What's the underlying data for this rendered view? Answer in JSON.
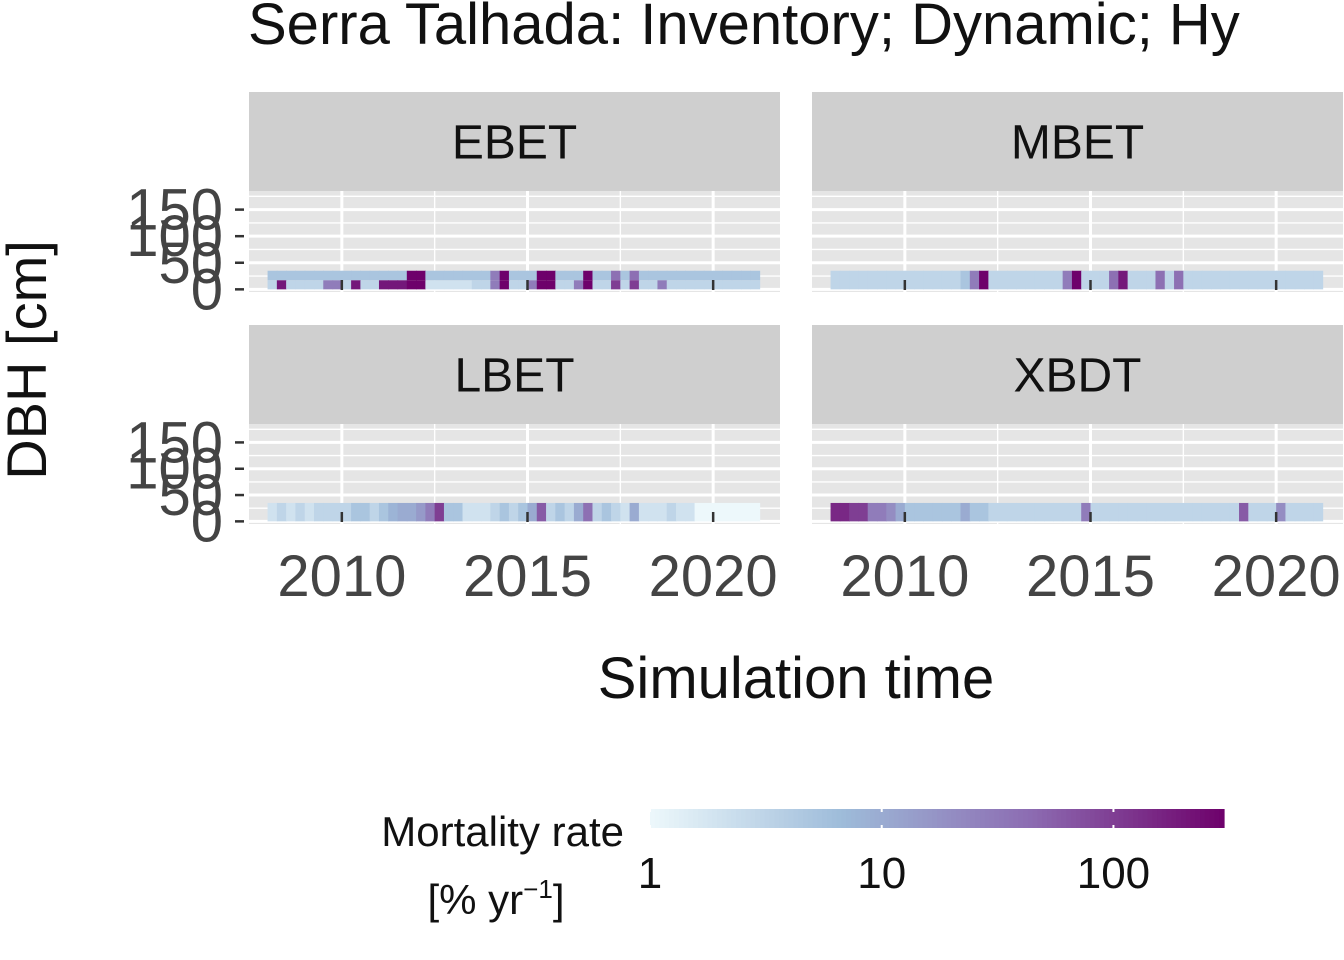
{
  "chart_data": {
    "type": "heatmap",
    "title": "Serra Talhada: Inventory; Dynamic; Hy",
    "xlabel": "Simulation time",
    "ylabel": "DBH [cm]",
    "x_ticks": [
      2010,
      2015,
      2020
    ],
    "y_ticks": [
      "150",
      "100",
      "50",
      "0"
    ],
    "xlim": [
      2007.5,
      2021.8
    ],
    "ylim": [
      -5,
      185
    ],
    "grid": true,
    "facet_rows": 2,
    "facet_cols": 2,
    "bin_width_years": 0.25,
    "bin_start_year": 2008.0,
    "bin_count": 53,
    "panels": [
      {
        "name": "EBET",
        "rows": [
          {
            "dbh": [
              17,
              35
            ],
            "values": [
              5,
              5,
              5,
              5,
              5,
              5,
              5,
              5,
              5,
              5,
              5,
              5,
              5,
              5,
              5,
              300,
              300,
              5,
              5,
              5,
              5,
              5,
              5,
              5,
              30,
              300,
              5,
              5,
              5,
              300,
              300,
              5,
              5,
              5,
              300,
              5,
              5,
              40,
              5,
              40,
              5,
              5,
              5,
              5,
              5,
              5,
              5,
              5,
              5,
              5,
              5,
              5,
              5
            ]
          },
          {
            "dbh": [
              0,
              17
            ],
            "values": [
              3,
              200,
              3,
              3,
              3,
              3,
              30,
              30,
              3,
              200,
              3,
              3,
              200,
              200,
              200,
              300,
              300,
              2,
              2,
              2,
              2,
              2,
              3,
              3,
              30,
              300,
              3,
              3,
              30,
              300,
              300,
              3,
              3,
              30,
              300,
              3,
              3,
              100,
              3,
              100,
              3,
              3,
              30,
              3,
              3,
              3,
              3,
              3,
              3,
              3,
              3,
              3,
              3
            ]
          }
        ]
      },
      {
        "name": "MBET",
        "rows": [
          {
            "dbh": [
              0,
              35
            ],
            "values": [
              3,
              3,
              3,
              3,
              3,
              3,
              3,
              3,
              3,
              3,
              3,
              3,
              3,
              3,
              5,
              30,
              300,
              3,
              3,
              3,
              3,
              3,
              3,
              3,
              3,
              30,
              300,
              3,
              3,
              3,
              40,
              200,
              3,
              3,
              3,
              40,
              3,
              40,
              3,
              3,
              3,
              3,
              3,
              3,
              3,
              3,
              3,
              3,
              3,
              3,
              3,
              3,
              3
            ]
          }
        ]
      },
      {
        "name": "LBET",
        "rows": [
          {
            "dbh": [
              0,
              35
            ],
            "values": [
              2,
              3,
              2,
              3,
              2,
              3,
              3,
              3,
              3,
              5,
              5,
              3,
              5,
              8,
              10,
              10,
              15,
              30,
              100,
              5,
              5,
              2,
              2,
              2,
              3,
              5,
              3,
              5,
              10,
              60,
              3,
              5,
              3,
              10,
              40,
              3,
              5,
              3,
              2,
              10,
              2,
              2,
              2,
              3,
              2,
              2,
              1,
              1,
              1,
              1,
              1,
              1,
              1
            ]
          }
        ]
      },
      {
        "name": "XBDT",
        "rows": [
          {
            "dbh": [
              0,
              35
            ],
            "values": [
              150,
              150,
              100,
              100,
              30,
              30,
              20,
              10,
              5,
              5,
              5,
              5,
              5,
              5,
              10,
              5,
              5,
              3,
              3,
              3,
              3,
              3,
              3,
              3,
              3,
              3,
              3,
              30,
              3,
              3,
              3,
              3,
              3,
              3,
              3,
              3,
              3,
              3,
              3,
              3,
              3,
              3,
              3,
              3,
              60,
              3,
              3,
              3,
              20,
              3,
              3,
              3,
              3
            ]
          }
        ]
      }
    ],
    "legend": {
      "title_line1": "Mortality rate",
      "title_line2_base": "[% yr",
      "title_line2_sup": "−1",
      "title_line2_end": "]",
      "ticks": [
        "1",
        "10",
        "100"
      ],
      "tick_values": [
        1,
        10,
        100
      ],
      "min": 1,
      "max": 300,
      "scale": "log10",
      "colors": [
        "#edf8fb",
        "#9ebcda",
        "#8c6bb1",
        "#6e016b"
      ],
      "placement": "bottom"
    }
  },
  "colors": {
    "panel_bg": "#e5e5e5",
    "strip_bg": "#cfcfcf",
    "grid": "#ffffff",
    "axis_text": "#444444",
    "text": "#111111"
  }
}
